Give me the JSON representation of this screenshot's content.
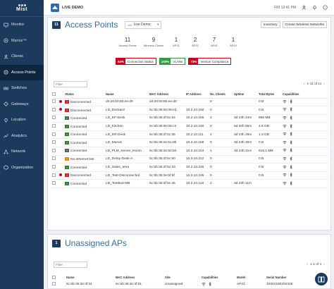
{
  "app": {
    "logo_text": "Mist"
  },
  "sidebar": {
    "items": [
      {
        "label": "Monitor",
        "icon": "monitor-icon",
        "active": false
      },
      {
        "label": "Marvis™",
        "icon": "marvis-icon",
        "active": false
      },
      {
        "label": "Clients",
        "icon": "clients-icon",
        "active": false
      },
      {
        "label": "Access Points",
        "icon": "access-points-icon",
        "active": true
      },
      {
        "label": "Switches",
        "icon": "switches-icon",
        "active": false
      },
      {
        "label": "Gateways",
        "icon": "gateways-icon",
        "active": false
      },
      {
        "label": "Location",
        "icon": "location-icon",
        "active": false
      },
      {
        "label": "Analytics",
        "icon": "analytics-icon",
        "active": false
      },
      {
        "label": "Network",
        "icon": "network-icon",
        "active": false
      },
      {
        "label": "Organization",
        "icon": "organization-icon",
        "active": false
      }
    ]
  },
  "topbar": {
    "org_name": "LIVE DEMO",
    "datetime": "FRI 12:41 PM"
  },
  "ap_card": {
    "count": "11",
    "title": "Access Points",
    "site_label": "site",
    "site_value": "Live Demo",
    "buttons": {
      "inventory": "Inventory",
      "create_wlan": "Create Wireless Networks"
    },
    "stats": [
      {
        "value": "11",
        "label": "Access Points"
      },
      {
        "value": "9",
        "label": "Wireless Clients"
      },
      {
        "value": "1",
        "label": "AP21"
      },
      {
        "value": "2",
        "label": "AP32"
      },
      {
        "value": "7",
        "label": "AP41"
      },
      {
        "value": "1",
        "label": "AP43"
      }
    ],
    "sle": [
      {
        "pct": "64%",
        "label": "Connection Status",
        "color": "#d0021b"
      },
      {
        "pct": "100%",
        "label": "VLANs",
        "color": "#2e9e3e"
      },
      {
        "pct": "73%",
        "label": "Version Compliance",
        "color": "#d0021b"
      }
    ],
    "filter_placeholder": "Filter",
    "pager": {
      "range": "1-11 of 11",
      "prev": "‹",
      "next": "›"
    },
    "columns": [
      "Status",
      "Name",
      "MAC Address",
      "IP Address",
      "No. Clients",
      "Uptime",
      "Total Bytes",
      "Capabilities"
    ],
    "rows": [
      {
        "alert": true,
        "status": "Disconnected",
        "kind": "disc",
        "name": "d4:20:b0:80:ee:d9",
        "mac": "d4:20:b0:80:ee:d9",
        "ip": "",
        "clients": "0",
        "uptime": "",
        "bytes": "0 B"
      },
      {
        "alert": true,
        "status": "Disconnected",
        "kind": "disc",
        "name": "LD_Deckard",
        "mac": "5c:5b:35:0e:06:e3",
        "ip": "10.2.10.160",
        "clients": "0",
        "uptime": "",
        "bytes": "0 B"
      },
      {
        "alert": false,
        "status": "Connected",
        "kind": "conn",
        "name": "LD_KF-Desk",
        "mac": "5c:5b:35:2f:5c:54",
        "ip": "10.2.10.185",
        "clients": "2",
        "uptime": "3d 23h 24m",
        "bytes": "996 MB"
      },
      {
        "alert": false,
        "status": "Connected",
        "kind": "conn",
        "name": "LD_Kitchen",
        "mac": "5c:5b:35:0e:05:c3",
        "ip": "10.2.10.230",
        "clients": "0",
        "uptime": "5d 20h 55m",
        "bytes": "4.8 GB"
      },
      {
        "alert": false,
        "status": "Connected",
        "kind": "conn",
        "name": "LD_KR-Desk",
        "mac": "5c:5b:35:2f:5c:36",
        "ip": "10.2.10.111",
        "clients": "4",
        "uptime": "3d 23h 29m",
        "bytes": "1.3 GB"
      },
      {
        "alert": false,
        "status": "Connected",
        "kind": "conn",
        "name": "LD_Marvis",
        "mac": "5c:5b:35:2e:51:8b",
        "ip": "10.2.10.158",
        "clients": "0",
        "uptime": "3d 23h 30m",
        "bytes": "0 B"
      },
      {
        "alert": false,
        "status": "Connected",
        "kind": "conn",
        "name": "LD_PLM_Server_Room",
        "mac": "5c:5b:35:2e:50:63",
        "ip": "10.2.10.104",
        "clients": "1",
        "uptime": "3d 23h 31m",
        "bytes": "615.1 MB"
      },
      {
        "alert": false,
        "status": "No ethernet link",
        "kind": "noeth",
        "name": "LD_Relay-Desk-A",
        "mac": "5c:5b:35:2f:5c:50",
        "ip": "10.2.10.212",
        "clients": "0",
        "uptime": "",
        "bytes": "0 B"
      },
      {
        "alert": false,
        "status": "Connected",
        "kind": "conn",
        "name": "LD_Sales_area",
        "mac": "5c:5b:35:2f:5c:33",
        "ip": "10.2.10.246",
        "clients": "0",
        "uptime": "",
        "bytes": "0 B"
      },
      {
        "alert": true,
        "status": "Disconnected",
        "kind": "disc",
        "name": "LD_Test-Disconnected",
        "mac": "5c:5b:35:3e:bf:8f",
        "ip": "10.2.10.195",
        "clients": "0",
        "uptime": "",
        "bytes": "0 B"
      },
      {
        "alert": false,
        "status": "Connected",
        "kind": "conn",
        "name": "LD_Testbed-MB",
        "mac": "5c:5b:35:2f:5c:45",
        "ip": "10.2.10.118",
        "clients": "2",
        "uptime": "3d 23h 11m",
        "bytes": ""
      }
    ]
  },
  "unassigned_card": {
    "count": "1",
    "title": "Unassigned APs",
    "filter_placeholder": "Filter",
    "pager": {
      "range": "1-1 of 1",
      "prev": "‹",
      "next": "›"
    },
    "columns": [
      "Name",
      "MAC Address",
      "Site",
      "Capabilities",
      "Model",
      "Serial Number"
    ],
    "rows": [
      {
        "name": "5c:5b:35:3e:4f:01",
        "mac": "5c:5b:35:3e:4f:01",
        "site": "Unassigned",
        "model": "AP41",
        "serial": "1000418020444E"
      }
    ]
  },
  "colors": {
    "sidebar_bg": "#1b3a5c",
    "accent": "#2b6cb0",
    "disconnected": "#c62828",
    "connected": "#2e7d32",
    "warning": "#e58a00"
  }
}
